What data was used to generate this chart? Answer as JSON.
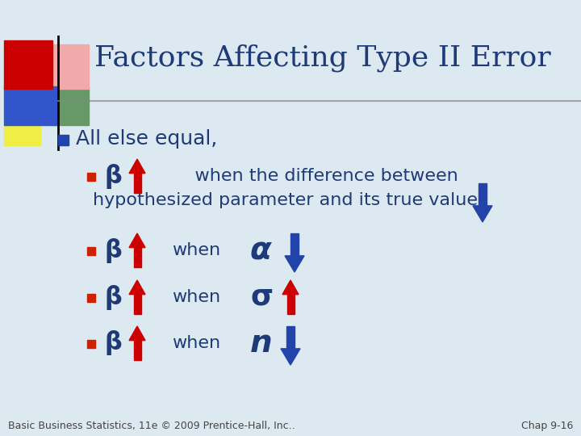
{
  "title": "Factors Affecting Type II Error",
  "bg_color": "#dde9f0",
  "title_color": "#1e3a78",
  "title_fontsize": 26,
  "body_color": "#1e3a78",
  "body_fontsize": 18,
  "beta_fontsize": 22,
  "symbol_fontsize": 24,
  "footer_left": "Basic Business Statistics, 11e © 2009 Prentice-Hall, Inc..",
  "footer_right": "Chap 9-16",
  "footer_fontsize": 9,
  "red_arrow_color": "#cc0000",
  "blue_arrow_color": "#2244aa",
  "bullet1_color": "#2244aa",
  "bullet2_color": "#cc2200",
  "header_line_color": "#888888",
  "when_fontsize": 16
}
